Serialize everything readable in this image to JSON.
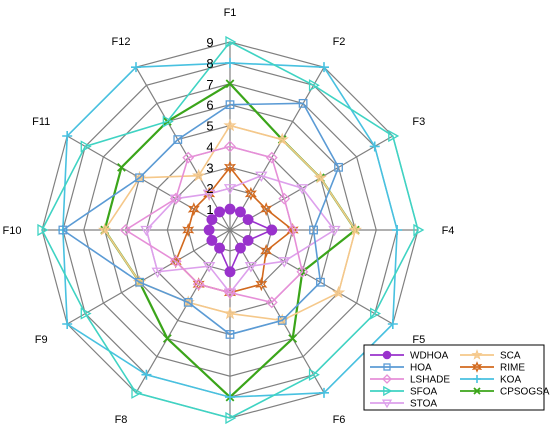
{
  "chart_data": {
    "type": "radar",
    "axes": [
      "F1",
      "F2",
      "F3",
      "F4",
      "F5",
      "F6",
      "F7",
      "F8",
      "F9",
      "F10",
      "F11",
      "F12"
    ],
    "rlim": [
      0,
      9
    ],
    "ring_labels": [
      "1",
      "2",
      "3",
      "4",
      "5",
      "6",
      "7",
      "8",
      "9"
    ],
    "grid": true,
    "grid_color": "#808080",
    "legend_position": "bottom-right",
    "series": [
      {
        "name": "WDHOA",
        "color": "#9932CC",
        "marker": "circle-filled",
        "values": [
          1,
          1,
          1,
          2,
          1,
          1,
          2,
          1,
          1,
          1,
          1,
          1
        ]
      },
      {
        "name": "HOA",
        "color": "#5B9BD5",
        "marker": "square",
        "values": [
          6,
          7,
          6,
          4,
          5,
          5,
          5,
          4,
          5,
          8,
          5,
          5
        ]
      },
      {
        "name": "LSHADE",
        "color": "#E68FD8",
        "marker": "diamond",
        "values": [
          4,
          4,
          3,
          3,
          4,
          4,
          3,
          3,
          3,
          5,
          3,
          4
        ]
      },
      {
        "name": "SFOA",
        "color": "#3FD3C3",
        "marker": "triangle-right",
        "values": [
          9,
          8,
          9,
          9,
          8,
          8,
          9,
          9,
          8,
          9,
          8,
          6
        ]
      },
      {
        "name": "STOA",
        "color": "#DDA0EC",
        "marker": "triangle-down",
        "values": [
          2,
          3,
          4,
          5,
          3,
          2,
          3,
          2,
          4,
          4,
          3,
          2
        ]
      },
      {
        "name": "SCA",
        "color": "#F5C88A",
        "marker": "star",
        "values": [
          5,
          5,
          5,
          6,
          6,
          5,
          4,
          4,
          5,
          6,
          5,
          3
        ]
      },
      {
        "name": "RIME",
        "color": "#D2691E",
        "marker": "star6",
        "values": [
          3,
          2,
          2,
          3,
          2,
          3,
          3,
          3,
          3,
          2,
          2,
          2
        ]
      },
      {
        "name": "KOA",
        "color": "#48C1E0",
        "marker": "plus",
        "values": [
          8,
          9,
          8,
          8,
          9,
          9,
          8,
          8,
          9,
          8,
          9,
          9
        ]
      },
      {
        "name": "CPSOGSA",
        "color": "#3BA51A",
        "marker": "x",
        "values": [
          7,
          5,
          5,
          6,
          4,
          6,
          8,
          6,
          5,
          6,
          6,
          6
        ]
      }
    ]
  }
}
